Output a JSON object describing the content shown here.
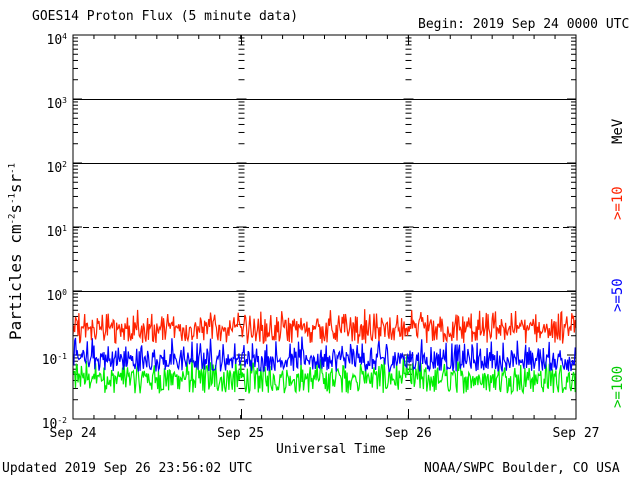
{
  "title": "GOES14 Proton Flux (5 minute data)",
  "begin_label": "Begin: 2019 Sep 24 0000 UTC",
  "footer_left": "Updated 2019 Sep 26 23:56:02 UTC",
  "footer_right": "NOAA/SWPC Boulder, CO USA",
  "colors": {
    "ge10": "#ff2200",
    "ge50": "#0000ff",
    "ge100": "#00ee00",
    "grid": "#000000"
  },
  "chart_data": {
    "type": "line",
    "title": "GOES14 Proton Flux (5 minute data)",
    "xlabel": "Universal Time",
    "ylabel": "Particles cm⁻²s⁻¹sr⁻¹",
    "ylabel_parts": {
      "base": "Particles cm",
      "e1": "-2",
      "m1": "s",
      "e2": "-1",
      "m2": "sr",
      "e3": "-1"
    },
    "yscale": "log",
    "ylim": [
      0.01,
      10000
    ],
    "yticks": [
      {
        "base": "10",
        "exp": "4"
      },
      {
        "base": "10",
        "exp": "3"
      },
      {
        "base": "10",
        "exp": "2"
      },
      {
        "base": "10",
        "exp": "1"
      },
      {
        "base": "10",
        "exp": "0"
      },
      {
        "base": "10",
        "exp": "-1"
      },
      {
        "base": "10",
        "exp": "-2"
      }
    ],
    "xticks": [
      "Sep 24",
      "Sep 25",
      "Sep 26",
      "Sep 27"
    ],
    "xlim_days": [
      0,
      3
    ],
    "unit_label": "MeV",
    "threshold_lines": [
      {
        "value": 1000,
        "style": "solid"
      },
      {
        "value": 100,
        "style": "solid"
      },
      {
        "value": 10,
        "style": "dashed"
      },
      {
        "value": 1,
        "style": "solid"
      }
    ],
    "series": [
      {
        "name": ">=10",
        "color": "#ff2200",
        "baseline": 0.26,
        "min": 0.15,
        "max": 0.55
      },
      {
        "name": ">=50",
        "color": "#0000ff",
        "baseline": 0.085,
        "min": 0.055,
        "max": 0.2
      },
      {
        "name": ">=100",
        "color": "#00ee00",
        "baseline": 0.045,
        "min": 0.025,
        "max": 0.1
      }
    ]
  }
}
